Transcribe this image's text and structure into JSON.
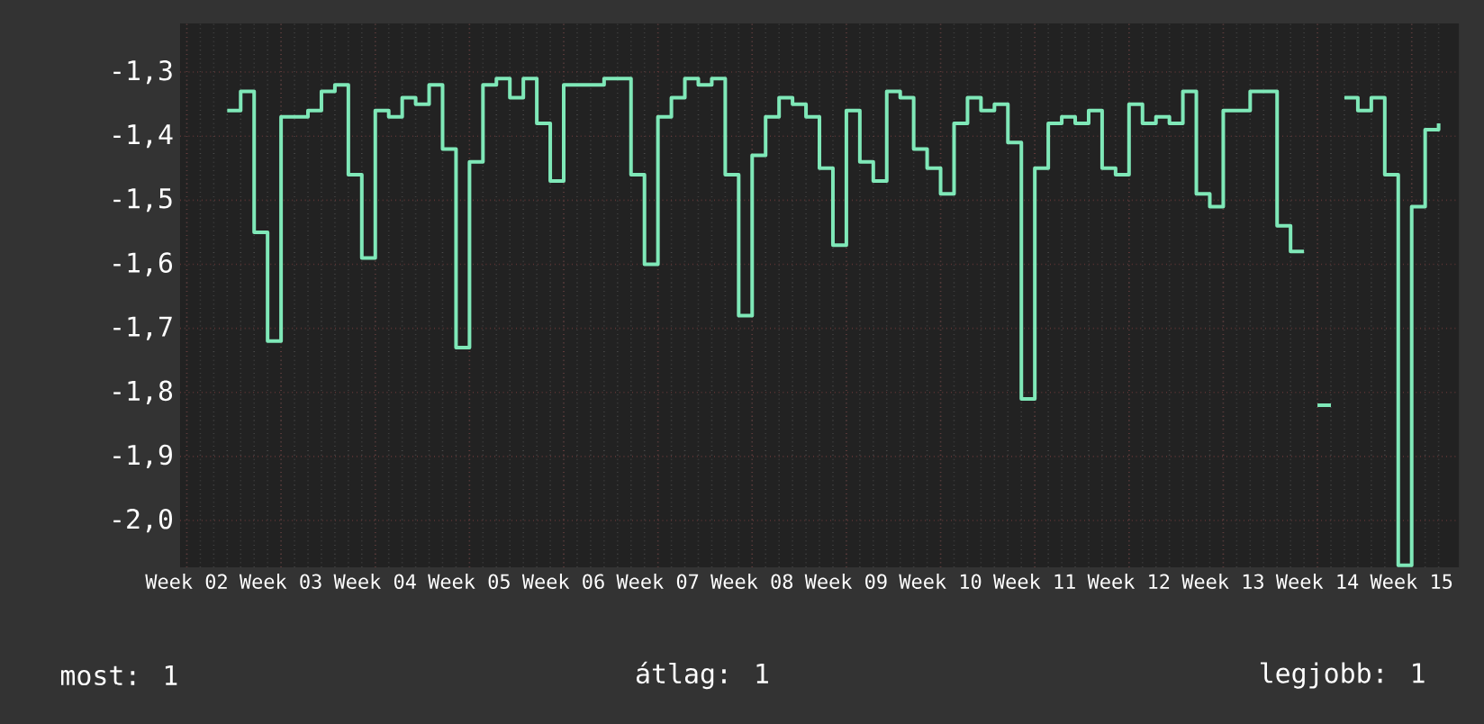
{
  "chart_data": {
    "type": "step",
    "ylim": [
      -2.073,
      -1.224
    ],
    "categories": [
      "Week 02",
      null,
      null,
      null,
      null,
      null,
      null,
      "Week 03",
      null,
      null,
      null,
      null,
      null,
      null,
      "Week 04",
      null,
      null,
      null,
      null,
      null,
      null,
      "Week 05",
      null,
      null,
      null,
      null,
      null,
      null,
      "Week 06",
      null,
      null,
      null,
      null,
      null,
      null,
      "Week 07",
      null,
      null,
      null,
      null,
      null,
      null,
      "Week 08",
      null,
      null,
      null,
      null,
      null,
      null,
      "Week 09",
      null,
      null,
      null,
      null,
      null,
      null,
      "Week 10",
      null,
      null,
      null,
      null,
      null,
      null,
      "Week 11",
      null,
      null,
      null,
      null,
      null,
      null,
      "Week 12",
      null,
      null,
      null,
      null,
      null,
      null,
      "Week 13",
      null,
      null,
      null,
      null,
      null,
      null,
      "Week 14",
      null,
      null,
      null,
      null,
      null,
      null,
      "Week 15",
      null,
      null
    ],
    "yticks": [
      {
        "value": -1.3,
        "label": "-1,3"
      },
      {
        "value": -1.4,
        "label": "-1,4"
      },
      {
        "value": -1.5,
        "label": "-1,5"
      },
      {
        "value": -1.6,
        "label": "-1,6"
      },
      {
        "value": -1.7,
        "label": "-1,7"
      },
      {
        "value": -1.8,
        "label": "-1,8"
      },
      {
        "value": -1.9,
        "label": "-1,9"
      },
      {
        "value": -2.0,
        "label": "-2,0"
      }
    ],
    "grid": true,
    "annotations": [
      "most: 1",
      "átlag: 1",
      "legjobb: 1"
    ],
    "series": [
      {
        "color": "#7fe8b8",
        "values": [
          null,
          null,
          null,
          -1.36,
          -1.33,
          -1.55,
          -1.72,
          -1.37,
          -1.37,
          -1.36,
          -1.33,
          -1.32,
          -1.46,
          -1.59,
          -1.36,
          -1.37,
          -1.34,
          -1.35,
          -1.32,
          -1.42,
          -1.73,
          -1.44,
          -1.32,
          -1.31,
          -1.34,
          -1.31,
          -1.38,
          -1.47,
          -1.32,
          -1.32,
          -1.32,
          -1.31,
          -1.31,
          -1.46,
          -1.6,
          -1.37,
          -1.34,
          -1.31,
          -1.32,
          -1.31,
          -1.46,
          -1.68,
          -1.43,
          -1.37,
          -1.34,
          -1.35,
          -1.37,
          -1.45,
          -1.57,
          -1.36,
          -1.44,
          -1.47,
          -1.33,
          -1.34,
          -1.42,
          -1.45,
          -1.49,
          -1.38,
          -1.34,
          -1.36,
          -1.35,
          -1.41,
          -1.81,
          -1.45,
          -1.38,
          -1.37,
          -1.38,
          -1.36,
          -1.45,
          -1.46,
          -1.35,
          -1.38,
          -1.37,
          -1.38,
          -1.33,
          -1.49,
          -1.51,
          -1.36,
          -1.36,
          -1.33,
          -1.33,
          -1.54,
          -1.58,
          null,
          -1.82,
          null,
          -1.34,
          -1.36,
          -1.34,
          -1.46,
          -2.07,
          -1.51,
          -1.39,
          -1.38
        ]
      }
    ]
  }
}
